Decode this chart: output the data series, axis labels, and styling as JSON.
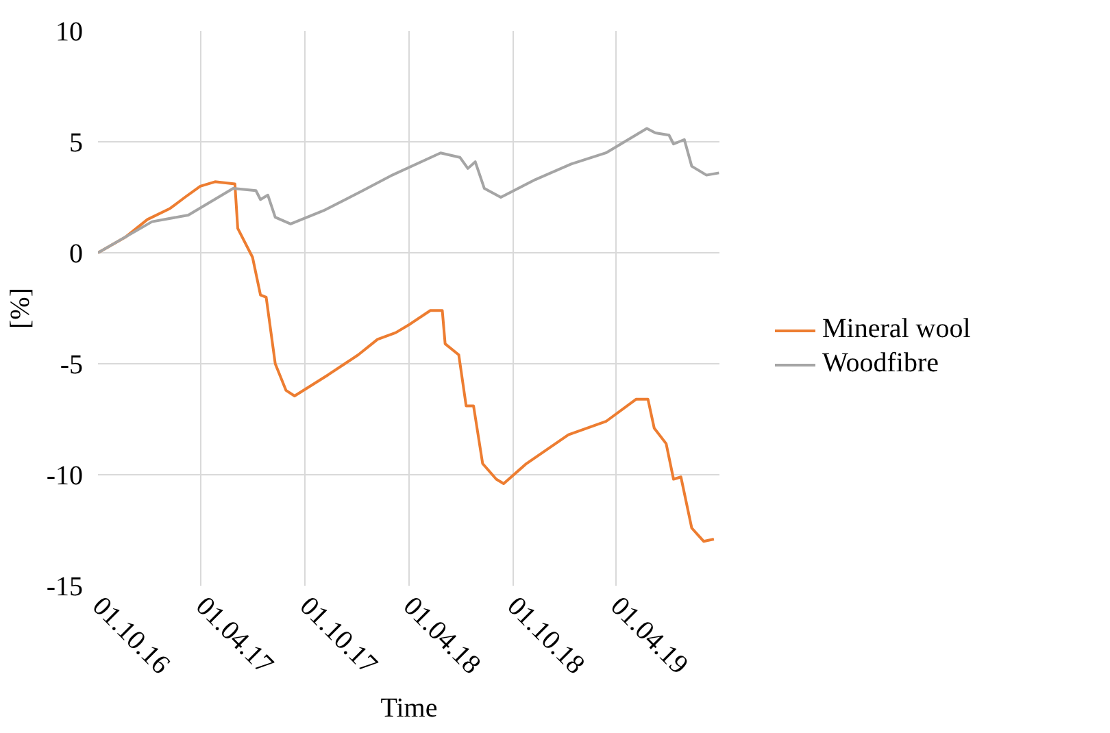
{
  "chart_data": {
    "type": "line",
    "xlabel": "Time",
    "ylabel": "[%]",
    "xlim": [
      "2016-10-01",
      "2019-10-01"
    ],
    "xticks": [
      {
        "value": "2016-10-01",
        "label": "01.10.16"
      },
      {
        "value": "2017-04-01",
        "label": "01.04.17"
      },
      {
        "value": "2017-10-01",
        "label": "01.10.17"
      },
      {
        "value": "2018-04-01",
        "label": "01.04.18"
      },
      {
        "value": "2018-10-01",
        "label": "01.10.18"
      },
      {
        "value": "2019-04-01",
        "label": "01.04.19"
      }
    ],
    "ylim": [
      -15,
      10
    ],
    "yticks": [
      -15,
      -10,
      -5,
      0,
      5,
      10
    ],
    "grid": true,
    "legend": "right",
    "line_style": "solid",
    "series": [
      {
        "name": "Mineral wool",
        "color": "#ed7d31",
        "x": [
          "2016-10-01",
          "2016-11-18",
          "2016-12-27",
          "2017-02-05",
          "2017-03-03",
          "2017-03-30",
          "2017-04-25",
          "2017-05-30",
          "2017-06-04",
          "2017-06-30",
          "2017-07-14",
          "2017-07-24",
          "2017-08-09",
          "2017-08-28",
          "2017-09-12",
          "2017-11-10",
          "2018-01-02",
          "2018-02-05",
          "2018-03-09",
          "2018-04-04",
          "2018-05-09",
          "2018-05-30",
          "2018-06-04",
          "2018-06-28",
          "2018-07-11",
          "2018-07-24",
          "2018-08-09",
          "2018-09-02",
          "2018-09-15",
          "2018-10-25",
          "2019-01-07",
          "2019-03-14",
          "2019-05-06",
          "2019-05-27",
          "2019-06-07",
          "2019-06-28",
          "2019-07-11",
          "2019-07-24",
          "2019-08-12",
          "2019-09-02",
          "2019-09-20"
        ],
        "values": [
          0,
          0.7,
          1.5,
          2.0,
          2.5,
          3.0,
          3.2,
          3.1,
          1.1,
          -0.2,
          -1.9,
          -2.0,
          -5.0,
          -6.2,
          -6.45,
          -5.5,
          -4.6,
          -3.9,
          -3.6,
          -3.2,
          -2.6,
          -2.6,
          -4.1,
          -4.6,
          -6.9,
          -6.9,
          -9.5,
          -10.2,
          -10.4,
          -9.5,
          -8.2,
          -7.6,
          -6.6,
          -6.6,
          -7.9,
          -8.6,
          -10.2,
          -10.1,
          -12.4,
          -13.0,
          -12.9
        ]
      },
      {
        "name": "Woodfibre",
        "color": "#a5a5a5",
        "x": [
          "2016-10-01",
          "2017-01-04",
          "2017-03-09",
          "2017-05-27",
          "2017-07-06",
          "2017-07-14",
          "2017-07-27",
          "2017-08-09",
          "2017-09-05",
          "2017-11-02",
          "2018-01-10",
          "2018-03-03",
          "2018-05-27",
          "2018-06-30",
          "2018-07-14",
          "2018-07-27",
          "2018-08-12",
          "2018-09-10",
          "2018-11-10",
          "2019-01-12",
          "2019-03-14",
          "2019-05-25",
          "2019-06-09",
          "2019-07-03",
          "2019-07-11",
          "2019-07-30",
          "2019-08-12",
          "2019-09-07",
          "2019-09-29"
        ],
        "values": [
          0,
          1.4,
          1.7,
          2.9,
          2.8,
          2.4,
          2.6,
          1.6,
          1.3,
          1.9,
          2.8,
          3.5,
          4.5,
          4.3,
          3.8,
          4.1,
          2.9,
          2.5,
          3.3,
          4.0,
          4.5,
          5.6,
          5.4,
          5.3,
          4.9,
          5.1,
          3.9,
          3.5,
          3.6
        ]
      }
    ]
  }
}
